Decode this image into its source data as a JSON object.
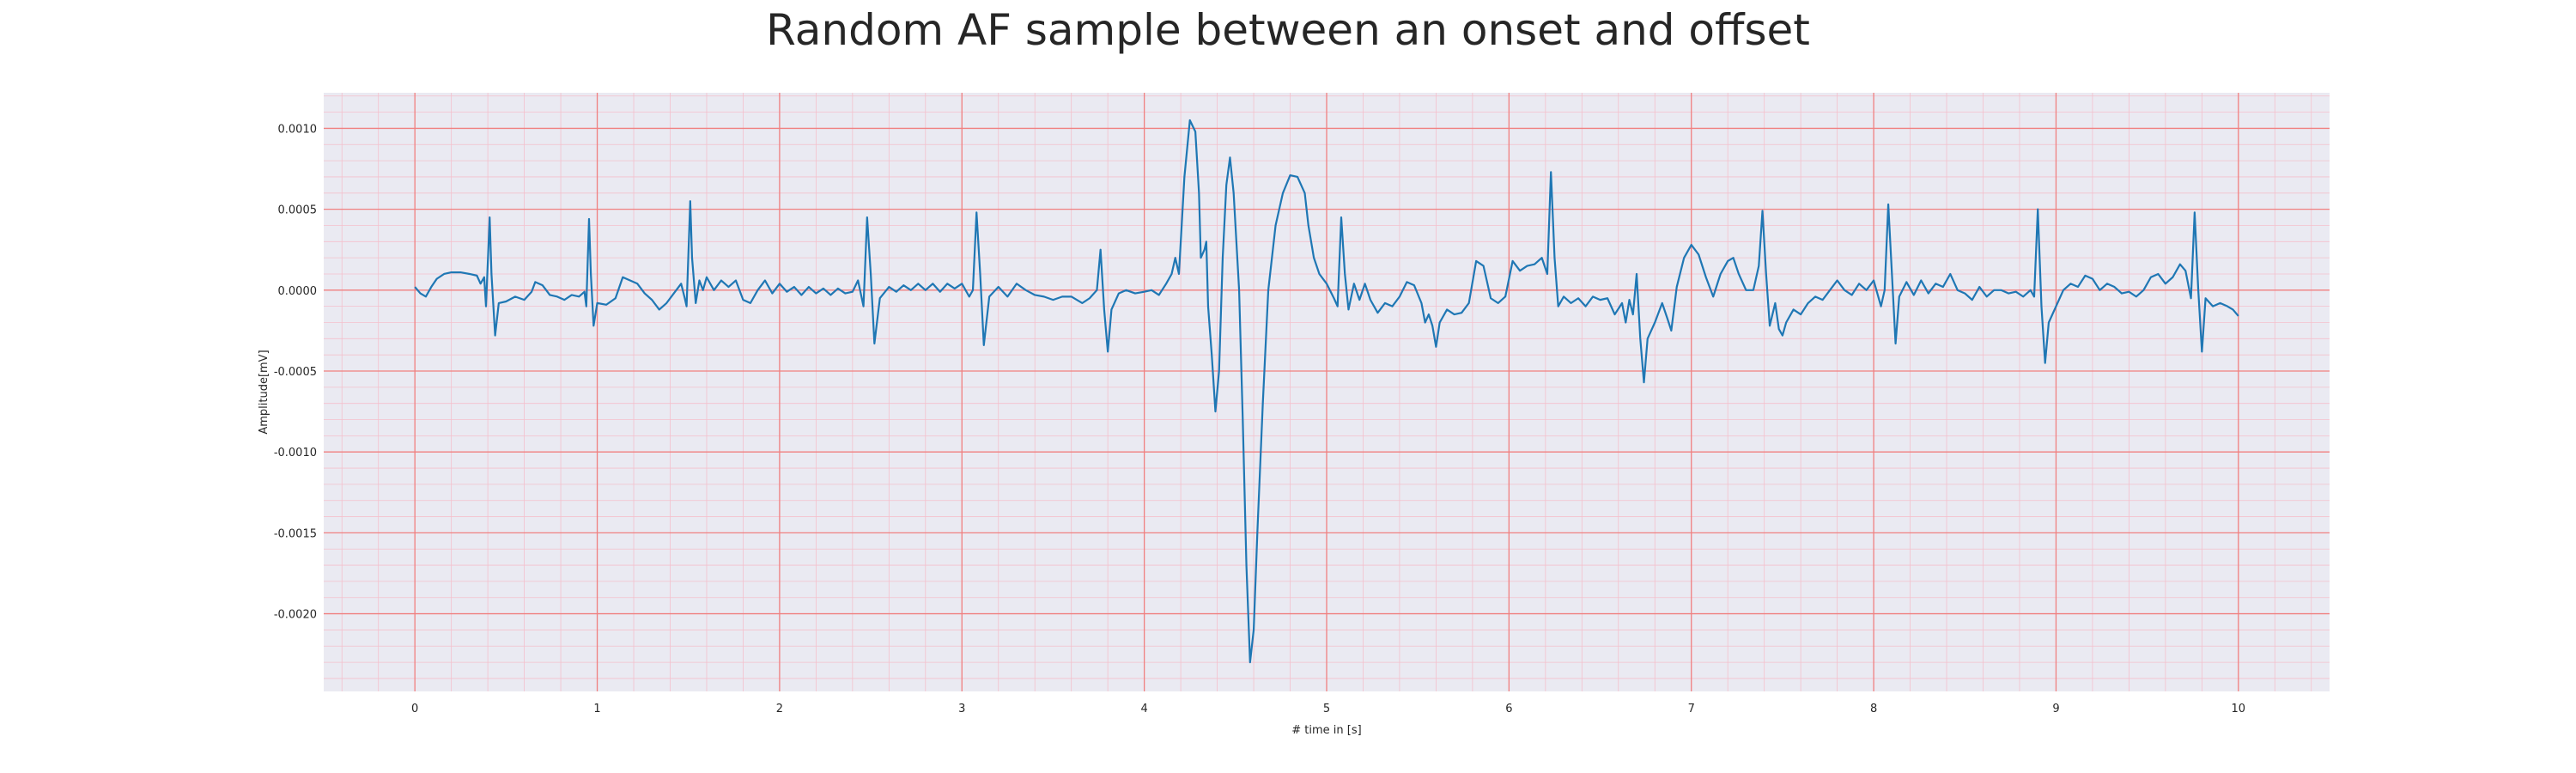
{
  "chart_data": {
    "type": "line",
    "title": "Random AF sample between an onset and offset",
    "xlabel": "# time in [s]",
    "ylabel": "Amplitude[mV]",
    "xlim": [
      -0.5,
      10.5
    ],
    "ylim": [
      -0.00248,
      0.00122
    ],
    "x_ticks": [
      0,
      1,
      2,
      3,
      4,
      5,
      6,
      7,
      8,
      9,
      10
    ],
    "y_ticks": [
      0.001,
      0.0005,
      0.0,
      -0.0005,
      -0.001,
      -0.0015,
      -0.002
    ],
    "y_tick_labels": [
      "0.0010",
      "0.0005",
      "0.0000",
      "-0.0005",
      "-0.0010",
      "-0.0015",
      "-0.0020"
    ],
    "x_tick_labels": [
      "0",
      "1",
      "2",
      "3",
      "4",
      "5",
      "6",
      "7",
      "8",
      "9",
      "10"
    ],
    "grid": true,
    "legend": "none",
    "colors": {
      "line": "#1f77b4",
      "major_grid": "#f08080",
      "minor_grid": "#f4c0cc",
      "plot_bg": "#eaeaf2"
    },
    "series": [
      {
        "points": [
          [
            0.0,
            2e-05
          ],
          [
            0.03,
            -2e-05
          ],
          [
            0.06,
            -4e-05
          ],
          [
            0.09,
            2e-05
          ],
          [
            0.12,
            7e-05
          ],
          [
            0.16,
            0.0001
          ],
          [
            0.2,
            0.00011
          ],
          [
            0.25,
            0.00011
          ],
          [
            0.3,
            0.0001
          ],
          [
            0.34,
            9e-05
          ],
          [
            0.36,
            4e-05
          ],
          [
            0.38,
            8e-05
          ],
          [
            0.39,
            -0.0001
          ],
          [
            0.41,
            0.00045
          ],
          [
            0.42,
            0.0001
          ],
          [
            0.44,
            -0.00028
          ],
          [
            0.46,
            -8e-05
          ],
          [
            0.5,
            -7e-05
          ],
          [
            0.55,
            -4e-05
          ],
          [
            0.6,
            -6e-05
          ],
          [
            0.64,
            -1e-05
          ],
          [
            0.66,
            5e-05
          ],
          [
            0.7,
            3e-05
          ],
          [
            0.74,
            -3e-05
          ],
          [
            0.78,
            -4e-05
          ],
          [
            0.82,
            -6e-05
          ],
          [
            0.86,
            -3e-05
          ],
          [
            0.9,
            -4e-05
          ],
          [
            0.93,
            -1e-05
          ],
          [
            0.94,
            -0.0001
          ],
          [
            0.955,
            0.00044
          ],
          [
            0.965,
            0.0001
          ],
          [
            0.98,
            -0.00022
          ],
          [
            1.0,
            -8e-05
          ],
          [
            1.05,
            -9e-05
          ],
          [
            1.1,
            -5e-05
          ],
          [
            1.14,
            8e-05
          ],
          [
            1.18,
            6e-05
          ],
          [
            1.22,
            4e-05
          ],
          [
            1.26,
            -2e-05
          ],
          [
            1.3,
            -6e-05
          ],
          [
            1.34,
            -0.00012
          ],
          [
            1.38,
            -8e-05
          ],
          [
            1.42,
            -2e-05
          ],
          [
            1.46,
            4e-05
          ],
          [
            1.48,
            -5e-05
          ],
          [
            1.49,
            -0.0001
          ],
          [
            1.51,
            0.00055
          ],
          [
            1.52,
            0.0002
          ],
          [
            1.54,
            -8e-05
          ],
          [
            1.56,
            6e-05
          ],
          [
            1.58,
            0.0
          ],
          [
            1.6,
            8e-05
          ],
          [
            1.64,
            0.0
          ],
          [
            1.68,
            6e-05
          ],
          [
            1.72,
            2e-05
          ],
          [
            1.76,
            6e-05
          ],
          [
            1.8,
            -6e-05
          ],
          [
            1.84,
            -8e-05
          ],
          [
            1.88,
            0.0
          ],
          [
            1.92,
            6e-05
          ],
          [
            1.96,
            -2e-05
          ],
          [
            2.0,
            4e-05
          ],
          [
            2.04,
            -1e-05
          ],
          [
            2.08,
            2e-05
          ],
          [
            2.12,
            -3e-05
          ],
          [
            2.16,
            2e-05
          ],
          [
            2.2,
            -2e-05
          ],
          [
            2.24,
            1e-05
          ],
          [
            2.28,
            -3e-05
          ],
          [
            2.32,
            1e-05
          ],
          [
            2.36,
            -2e-05
          ],
          [
            2.4,
            -1e-05
          ],
          [
            2.43,
            6e-05
          ],
          [
            2.46,
            -0.0001
          ],
          [
            2.48,
            0.00045
          ],
          [
            2.5,
            0.0001
          ],
          [
            2.52,
            -0.00033
          ],
          [
            2.55,
            -5e-05
          ],
          [
            2.6,
            2e-05
          ],
          [
            2.64,
            -1e-05
          ],
          [
            2.68,
            3e-05
          ],
          [
            2.72,
            0.0
          ],
          [
            2.76,
            4e-05
          ],
          [
            2.8,
            0.0
          ],
          [
            2.84,
            4e-05
          ],
          [
            2.88,
            -1e-05
          ],
          [
            2.92,
            4e-05
          ],
          [
            2.96,
            1e-05
          ],
          [
            3.0,
            4e-05
          ],
          [
            3.04,
            -4e-05
          ],
          [
            3.06,
            0.0
          ],
          [
            3.08,
            0.00048
          ],
          [
            3.1,
            0.0001
          ],
          [
            3.12,
            -0.00034
          ],
          [
            3.15,
            -4e-05
          ],
          [
            3.2,
            2e-05
          ],
          [
            3.25,
            -4e-05
          ],
          [
            3.3,
            4e-05
          ],
          [
            3.35,
            0.0
          ],
          [
            3.4,
            -3e-05
          ],
          [
            3.45,
            -4e-05
          ],
          [
            3.5,
            -6e-05
          ],
          [
            3.55,
            -4e-05
          ],
          [
            3.6,
            -4e-05
          ],
          [
            3.66,
            -8e-05
          ],
          [
            3.7,
            -5e-05
          ],
          [
            3.74,
            0.0
          ],
          [
            3.76,
            0.00025
          ],
          [
            3.78,
            -0.00012
          ],
          [
            3.8,
            -0.00038
          ],
          [
            3.82,
            -0.00012
          ],
          [
            3.86,
            -2e-05
          ],
          [
            3.9,
            0.0
          ],
          [
            3.95,
            -2e-05
          ],
          [
            4.0,
            -1e-05
          ],
          [
            4.04,
            0.0
          ],
          [
            4.08,
            -3e-05
          ],
          [
            4.12,
            4e-05
          ],
          [
            4.15,
            0.0001
          ],
          [
            4.17,
            0.0002
          ],
          [
            4.19,
            0.0001
          ],
          [
            4.22,
            0.0007
          ],
          [
            4.25,
            0.00105
          ],
          [
            4.28,
            0.00098
          ],
          [
            4.3,
            0.0006
          ],
          [
            4.31,
            0.0002
          ],
          [
            4.33,
            0.00025
          ],
          [
            4.34,
            0.0003
          ],
          [
            4.35,
            -0.0001
          ],
          [
            4.37,
            -0.0004
          ],
          [
            4.39,
            -0.00075
          ],
          [
            4.41,
            -0.0005
          ],
          [
            4.43,
            0.0002
          ],
          [
            4.45,
            0.00065
          ],
          [
            4.47,
            0.00082
          ],
          [
            4.49,
            0.0006
          ],
          [
            4.52,
            0.0
          ],
          [
            4.54,
            -0.0008
          ],
          [
            4.56,
            -0.0017
          ],
          [
            4.58,
            -0.0023
          ],
          [
            4.6,
            -0.0021
          ],
          [
            4.62,
            -0.0015
          ],
          [
            4.65,
            -0.0007
          ],
          [
            4.68,
            0.0
          ],
          [
            4.72,
            0.0004
          ],
          [
            4.76,
            0.0006
          ],
          [
            4.8,
            0.00071
          ],
          [
            4.84,
            0.0007
          ],
          [
            4.88,
            0.0006
          ],
          [
            4.9,
            0.0004
          ],
          [
            4.93,
            0.0002
          ],
          [
            4.96,
            0.0001
          ],
          [
            5.0,
            4e-05
          ],
          [
            5.04,
            -5e-05
          ],
          [
            5.06,
            -0.0001
          ],
          [
            5.08,
            0.00045
          ],
          [
            5.1,
            0.0001
          ],
          [
            5.12,
            -0.00012
          ],
          [
            5.15,
            4e-05
          ],
          [
            5.18,
            -6e-05
          ],
          [
            5.21,
            4e-05
          ],
          [
            5.24,
            -6e-05
          ],
          [
            5.28,
            -0.00014
          ],
          [
            5.32,
            -8e-05
          ],
          [
            5.36,
            -0.0001
          ],
          [
            5.4,
            -4e-05
          ],
          [
            5.44,
            5e-05
          ],
          [
            5.48,
            3e-05
          ],
          [
            5.52,
            -8e-05
          ],
          [
            5.54,
            -0.0002
          ],
          [
            5.56,
            -0.00015
          ],
          [
            5.58,
            -0.00022
          ],
          [
            5.6,
            -0.00035
          ],
          [
            5.62,
            -0.0002
          ],
          [
            5.66,
            -0.00012
          ],
          [
            5.7,
            -0.00015
          ],
          [
            5.74,
            -0.00014
          ],
          [
            5.78,
            -8e-05
          ],
          [
            5.82,
            0.00018
          ],
          [
            5.86,
            0.00015
          ],
          [
            5.9,
            -5e-05
          ],
          [
            5.94,
            -8e-05
          ],
          [
            5.98,
            -4e-05
          ],
          [
            6.02,
            0.00018
          ],
          [
            6.06,
            0.00012
          ],
          [
            6.1,
            0.00015
          ],
          [
            6.14,
            0.00016
          ],
          [
            6.18,
            0.0002
          ],
          [
            6.21,
            0.0001
          ],
          [
            6.23,
            0.00073
          ],
          [
            6.25,
            0.0002
          ],
          [
            6.27,
            -0.0001
          ],
          [
            6.3,
            -4e-05
          ],
          [
            6.34,
            -8e-05
          ],
          [
            6.38,
            -5e-05
          ],
          [
            6.42,
            -0.0001
          ],
          [
            6.46,
            -4e-05
          ],
          [
            6.5,
            -6e-05
          ],
          [
            6.54,
            -5e-05
          ],
          [
            6.58,
            -0.00015
          ],
          [
            6.62,
            -8e-05
          ],
          [
            6.64,
            -0.0002
          ],
          [
            6.66,
            -6e-05
          ],
          [
            6.68,
            -0.00015
          ],
          [
            6.7,
            0.0001
          ],
          [
            6.72,
            -0.0003
          ],
          [
            6.74,
            -0.00057
          ],
          [
            6.76,
            -0.0003
          ],
          [
            6.8,
            -0.0002
          ],
          [
            6.84,
            -8e-05
          ],
          [
            6.87,
            -0.00018
          ],
          [
            6.89,
            -0.00025
          ],
          [
            6.92,
            2e-05
          ],
          [
            6.96,
            0.0002
          ],
          [
            7.0,
            0.00028
          ],
          [
            7.04,
            0.00022
          ],
          [
            7.08,
            8e-05
          ],
          [
            7.12,
            -4e-05
          ],
          [
            7.16,
            0.0001
          ],
          [
            7.2,
            0.00018
          ],
          [
            7.23,
            0.0002
          ],
          [
            7.26,
            0.0001
          ],
          [
            7.3,
            0.0
          ],
          [
            7.34,
            0.0
          ],
          [
            7.37,
            0.00015
          ],
          [
            7.39,
            0.00049
          ],
          [
            7.41,
            0.0001
          ],
          [
            7.43,
            -0.00022
          ],
          [
            7.46,
            -8e-05
          ],
          [
            7.48,
            -0.00024
          ],
          [
            7.5,
            -0.00028
          ],
          [
            7.52,
            -0.0002
          ],
          [
            7.56,
            -0.00012
          ],
          [
            7.6,
            -0.00015
          ],
          [
            7.64,
            -8e-05
          ],
          [
            7.68,
            -4e-05
          ],
          [
            7.72,
            -6e-05
          ],
          [
            7.76,
            0.0
          ],
          [
            7.8,
            6e-05
          ],
          [
            7.84,
            0.0
          ],
          [
            7.88,
            -3e-05
          ],
          [
            7.92,
            4e-05
          ],
          [
            7.96,
            0.0
          ],
          [
            8.0,
            6e-05
          ],
          [
            8.04,
            -0.0001
          ],
          [
            8.06,
            0.0
          ],
          [
            8.08,
            0.00053
          ],
          [
            8.1,
            0.0001
          ],
          [
            8.12,
            -0.00033
          ],
          [
            8.14,
            -4e-05
          ],
          [
            8.18,
            5e-05
          ],
          [
            8.22,
            -3e-05
          ],
          [
            8.26,
            6e-05
          ],
          [
            8.3,
            -2e-05
          ],
          [
            8.34,
            4e-05
          ],
          [
            8.38,
            2e-05
          ],
          [
            8.42,
            0.0001
          ],
          [
            8.46,
            0.0
          ],
          [
            8.5,
            -2e-05
          ],
          [
            8.54,
            -6e-05
          ],
          [
            8.58,
            2e-05
          ],
          [
            8.62,
            -4e-05
          ],
          [
            8.66,
            0.0
          ],
          [
            8.7,
            0.0
          ],
          [
            8.74,
            -2e-05
          ],
          [
            8.78,
            -1e-05
          ],
          [
            8.82,
            -4e-05
          ],
          [
            8.86,
            0.0
          ],
          [
            8.88,
            -4e-05
          ],
          [
            8.9,
            0.0005
          ],
          [
            8.92,
            -0.0001
          ],
          [
            8.94,
            -0.00045
          ],
          [
            8.96,
            -0.0002
          ],
          [
            9.0,
            -0.0001
          ],
          [
            9.04,
            0.0
          ],
          [
            9.08,
            4e-05
          ],
          [
            9.12,
            2e-05
          ],
          [
            9.16,
            9e-05
          ],
          [
            9.2,
            7e-05
          ],
          [
            9.24,
            0.0
          ],
          [
            9.28,
            4e-05
          ],
          [
            9.32,
            2e-05
          ],
          [
            9.36,
            -2e-05
          ],
          [
            9.4,
            -1e-05
          ],
          [
            9.44,
            -4e-05
          ],
          [
            9.48,
            0.0
          ],
          [
            9.52,
            8e-05
          ],
          [
            9.56,
            0.0001
          ],
          [
            9.6,
            4e-05
          ],
          [
            9.64,
            8e-05
          ],
          [
            9.68,
            0.00016
          ],
          [
            9.71,
            0.00012
          ],
          [
            9.74,
            -5e-05
          ],
          [
            9.76,
            0.00048
          ],
          [
            9.78,
            0.0
          ],
          [
            9.8,
            -0.00038
          ],
          [
            9.82,
            -5e-05
          ],
          [
            9.86,
            -0.0001
          ],
          [
            9.9,
            -8e-05
          ],
          [
            9.94,
            -0.0001
          ],
          [
            9.97,
            -0.00012
          ],
          [
            10.0,
            -0.00016
          ]
        ]
      }
    ]
  }
}
